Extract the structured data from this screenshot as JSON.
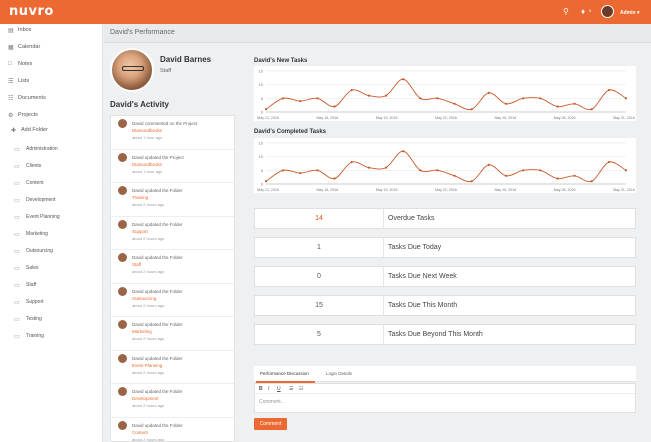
{
  "app": {
    "logo": "nuvro"
  },
  "topbar": {
    "user_label": "Admin ▾",
    "notification_count": "0"
  },
  "header": {
    "title": "David's Performance"
  },
  "sidebar": {
    "items": [
      {
        "label": "Inbox",
        "icon": "inbox-icon"
      },
      {
        "label": "Calendar",
        "icon": "calendar-icon"
      },
      {
        "label": "Notes",
        "icon": "notes-icon"
      },
      {
        "label": "Lists",
        "icon": "lists-icon"
      },
      {
        "label": "Documents",
        "icon": "documents-icon"
      },
      {
        "label": "Projects",
        "icon": "projects-icon"
      }
    ],
    "add_folder": "Add Folder",
    "folders": [
      "Administration",
      "Clients",
      "Content",
      "Development",
      "Event Planning",
      "Marketing",
      "Outsourcing",
      "Sales",
      "Staff",
      "Support",
      "Testing",
      "Training"
    ]
  },
  "profile": {
    "name": "David Barnes",
    "role": "Staff"
  },
  "activity": {
    "title": "David's Activity",
    "items": [
      {
        "text": "David commented on the Project",
        "link": "Diamondbooks",
        "time": "about 1 hour ago"
      },
      {
        "text": "David updated the Project",
        "link": "Diamondbooks",
        "time": "about 1 hour ago"
      },
      {
        "text": "David updated the Folder",
        "link": "Training",
        "time": "about 2 hours ago"
      },
      {
        "text": "David updated the Folder",
        "link": "Support",
        "time": "about 2 hours ago"
      },
      {
        "text": "David updated the Folder",
        "link": "Staff",
        "time": "about 2 hours ago"
      },
      {
        "text": "David updated the Folder",
        "link": "Outsourcing",
        "time": "about 2 hours ago"
      },
      {
        "text": "David updated the Folder",
        "link": "Marketing",
        "time": "about 2 hours ago"
      },
      {
        "text": "David updated the Folder",
        "link": "Event Planning",
        "time": "about 2 hours ago"
      },
      {
        "text": "David updated the Folder",
        "link": "Development",
        "time": "about 2 hours ago"
      },
      {
        "text": "David updated the Folder",
        "link": "Content",
        "time": "about 2 hours ago"
      }
    ]
  },
  "chart_data": [
    {
      "type": "line",
      "title": "David's New Tasks",
      "ylim": [
        0,
        15
      ],
      "yticks": [
        "0",
        "5",
        "10",
        "15"
      ],
      "xtick_labels": [
        "May 13, 2016",
        "May 16, 2016",
        "May 19, 2016",
        "May 22, 2016",
        "May 25, 2016",
        "May 28, 2016",
        "May 31, 2016"
      ],
      "values": [
        1,
        5,
        4,
        5,
        2,
        8,
        6,
        6,
        12,
        5,
        5,
        3,
        1,
        7,
        3,
        5,
        5,
        2,
        3,
        1,
        8,
        5
      ],
      "color": "#c8592b"
    },
    {
      "type": "line",
      "title": "David's Completed Tasks",
      "ylim": [
        0,
        15
      ],
      "yticks": [
        "0",
        "5",
        "10",
        "15"
      ],
      "xtick_labels": [
        "May 13, 2016",
        "May 16, 2016",
        "May 19, 2016",
        "May 22, 2016",
        "May 25, 2016",
        "May 28, 2016",
        "May 31, 2016"
      ],
      "values": [
        1,
        5,
        4,
        5,
        2,
        8,
        6,
        6,
        12,
        5,
        5,
        3,
        1,
        7,
        3,
        5,
        5,
        2,
        3,
        1,
        8,
        5
      ],
      "color": "#c8592b"
    }
  ],
  "stats": [
    {
      "value": "14",
      "label": "Overdue Tasks",
      "color": "#d9531e"
    },
    {
      "value": "1",
      "label": "Tasks Due Today",
      "color": "#555555"
    },
    {
      "value": "0",
      "label": "Tasks Due Next Week",
      "color": "#555555"
    },
    {
      "value": "15",
      "label": "Tasks Due This Month",
      "color": "#555555"
    },
    {
      "value": "5",
      "label": "Tasks Due Beyond This Month",
      "color": "#555555"
    }
  ],
  "tabs": [
    {
      "label": "Performance Discussion",
      "active": true
    },
    {
      "label": "Login Details",
      "active": false
    }
  ],
  "editor": {
    "placeholder": "Comment...",
    "tools": [
      "B",
      "I",
      "U",
      "☰",
      "☷"
    ]
  },
  "comment_button": "Comment",
  "accent": "#ec6a31"
}
